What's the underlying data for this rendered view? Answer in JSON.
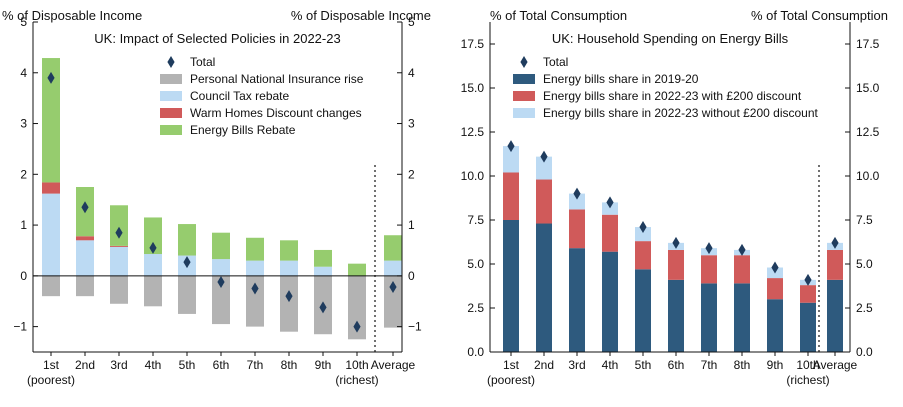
{
  "chart_data": [
    {
      "type": "bar",
      "stacked": true,
      "title": "UK: Impact of Selected Policies in 2022-23",
      "ylabel_left": "% of Disposable Income",
      "ylabel_right": "% of Disposable Income",
      "ylim": [
        -1.5,
        5
      ],
      "yticks": [
        -1,
        0,
        1,
        2,
        3,
        4,
        5
      ],
      "ytick_labels": [
        "−1",
        "0",
        "1",
        "2",
        "3",
        "4",
        "5"
      ],
      "categories": [
        "1st",
        "2nd",
        "3rd",
        "4th",
        "5th",
        "6th",
        "7th",
        "8th",
        "9th",
        "10th",
        "Average"
      ],
      "category_sublabels": [
        "(poorest)",
        "",
        "",
        "",
        "",
        "",
        "",
        "",
        "",
        "(richest)",
        ""
      ],
      "legend_position": "upper-center",
      "series": [
        {
          "name": "Total",
          "kind": "marker",
          "color": "#1f3c5e",
          "values": [
            3.9,
            1.35,
            0.85,
            0.55,
            0.27,
            -0.12,
            -0.25,
            -0.4,
            -0.62,
            -1.0,
            -0.22
          ]
        },
        {
          "name": "Personal National Insurance rise",
          "kind": "bar",
          "color": "#b3b3b3",
          "values": [
            -0.4,
            -0.4,
            -0.55,
            -0.6,
            -0.75,
            -0.95,
            -1.0,
            -1.1,
            -1.15,
            -1.25,
            -1.02
          ]
        },
        {
          "name": "Council Tax rebate",
          "kind": "bar",
          "color": "#bcdaf3",
          "values": [
            1.62,
            0.7,
            0.57,
            0.43,
            0.4,
            0.33,
            0.3,
            0.3,
            0.18,
            0.0,
            0.3
          ]
        },
        {
          "name": "Warm Homes Discount changes",
          "kind": "bar",
          "color": "#d05a5a",
          "values": [
            0.22,
            0.08,
            0.02,
            0.0,
            0.0,
            0.0,
            0.0,
            0.0,
            0.0,
            0.0,
            0.0
          ]
        },
        {
          "name": "Energy Bills Rebate",
          "kind": "bar",
          "color": "#96cc6e",
          "values": [
            2.45,
            0.97,
            0.8,
            0.72,
            0.62,
            0.52,
            0.45,
            0.4,
            0.33,
            0.24,
            0.5
          ]
        }
      ]
    },
    {
      "type": "bar",
      "stacked": true,
      "title": "UK: Household Spending on Energy Bills",
      "ylabel_left": "% of Total Consumption",
      "ylabel_right": "% of Total Consumption",
      "ylim": [
        0,
        18.75
      ],
      "yticks": [
        0,
        2.5,
        5,
        7.5,
        10,
        12.5,
        15,
        17.5
      ],
      "ytick_labels": [
        "0.0",
        "2.5",
        "5.0",
        "7.5",
        "10.0",
        "12.5",
        "15.0",
        "17.5"
      ],
      "categories": [
        "1st",
        "2nd",
        "3rd",
        "4th",
        "5th",
        "6th",
        "7th",
        "8th",
        "9th",
        "10th",
        "Average"
      ],
      "category_sublabels": [
        "(poorest)",
        "",
        "",
        "",
        "",
        "",
        "",
        "",
        "",
        "(richest)",
        ""
      ],
      "legend_position": "upper-center",
      "series": [
        {
          "name": "Total",
          "kind": "marker",
          "color": "#1f3c5e",
          "values": [
            11.7,
            11.1,
            9.0,
            8.5,
            7.1,
            6.2,
            5.9,
            5.8,
            4.8,
            4.1,
            6.2
          ]
        },
        {
          "name": "Energy bills share in 2019-20",
          "kind": "bar",
          "color": "#2e5a7e",
          "values": [
            7.5,
            7.3,
            5.9,
            5.7,
            4.7,
            4.1,
            3.9,
            3.9,
            3.0,
            2.8,
            4.1
          ]
        },
        {
          "name": "Energy bills share in 2022-23 with £200 discount",
          "kind": "bar",
          "color": "#d05a5a",
          "values": [
            2.7,
            2.5,
            2.2,
            2.1,
            1.6,
            1.7,
            1.6,
            1.6,
            1.2,
            1.0,
            1.7
          ]
        },
        {
          "name": "Energy bills share in 2022-23 without £200 discount",
          "kind": "bar",
          "color": "#bcdaf3",
          "values": [
            1.5,
            1.3,
            0.9,
            0.7,
            0.8,
            0.4,
            0.4,
            0.3,
            0.6,
            0.3,
            0.4
          ]
        }
      ]
    }
  ]
}
